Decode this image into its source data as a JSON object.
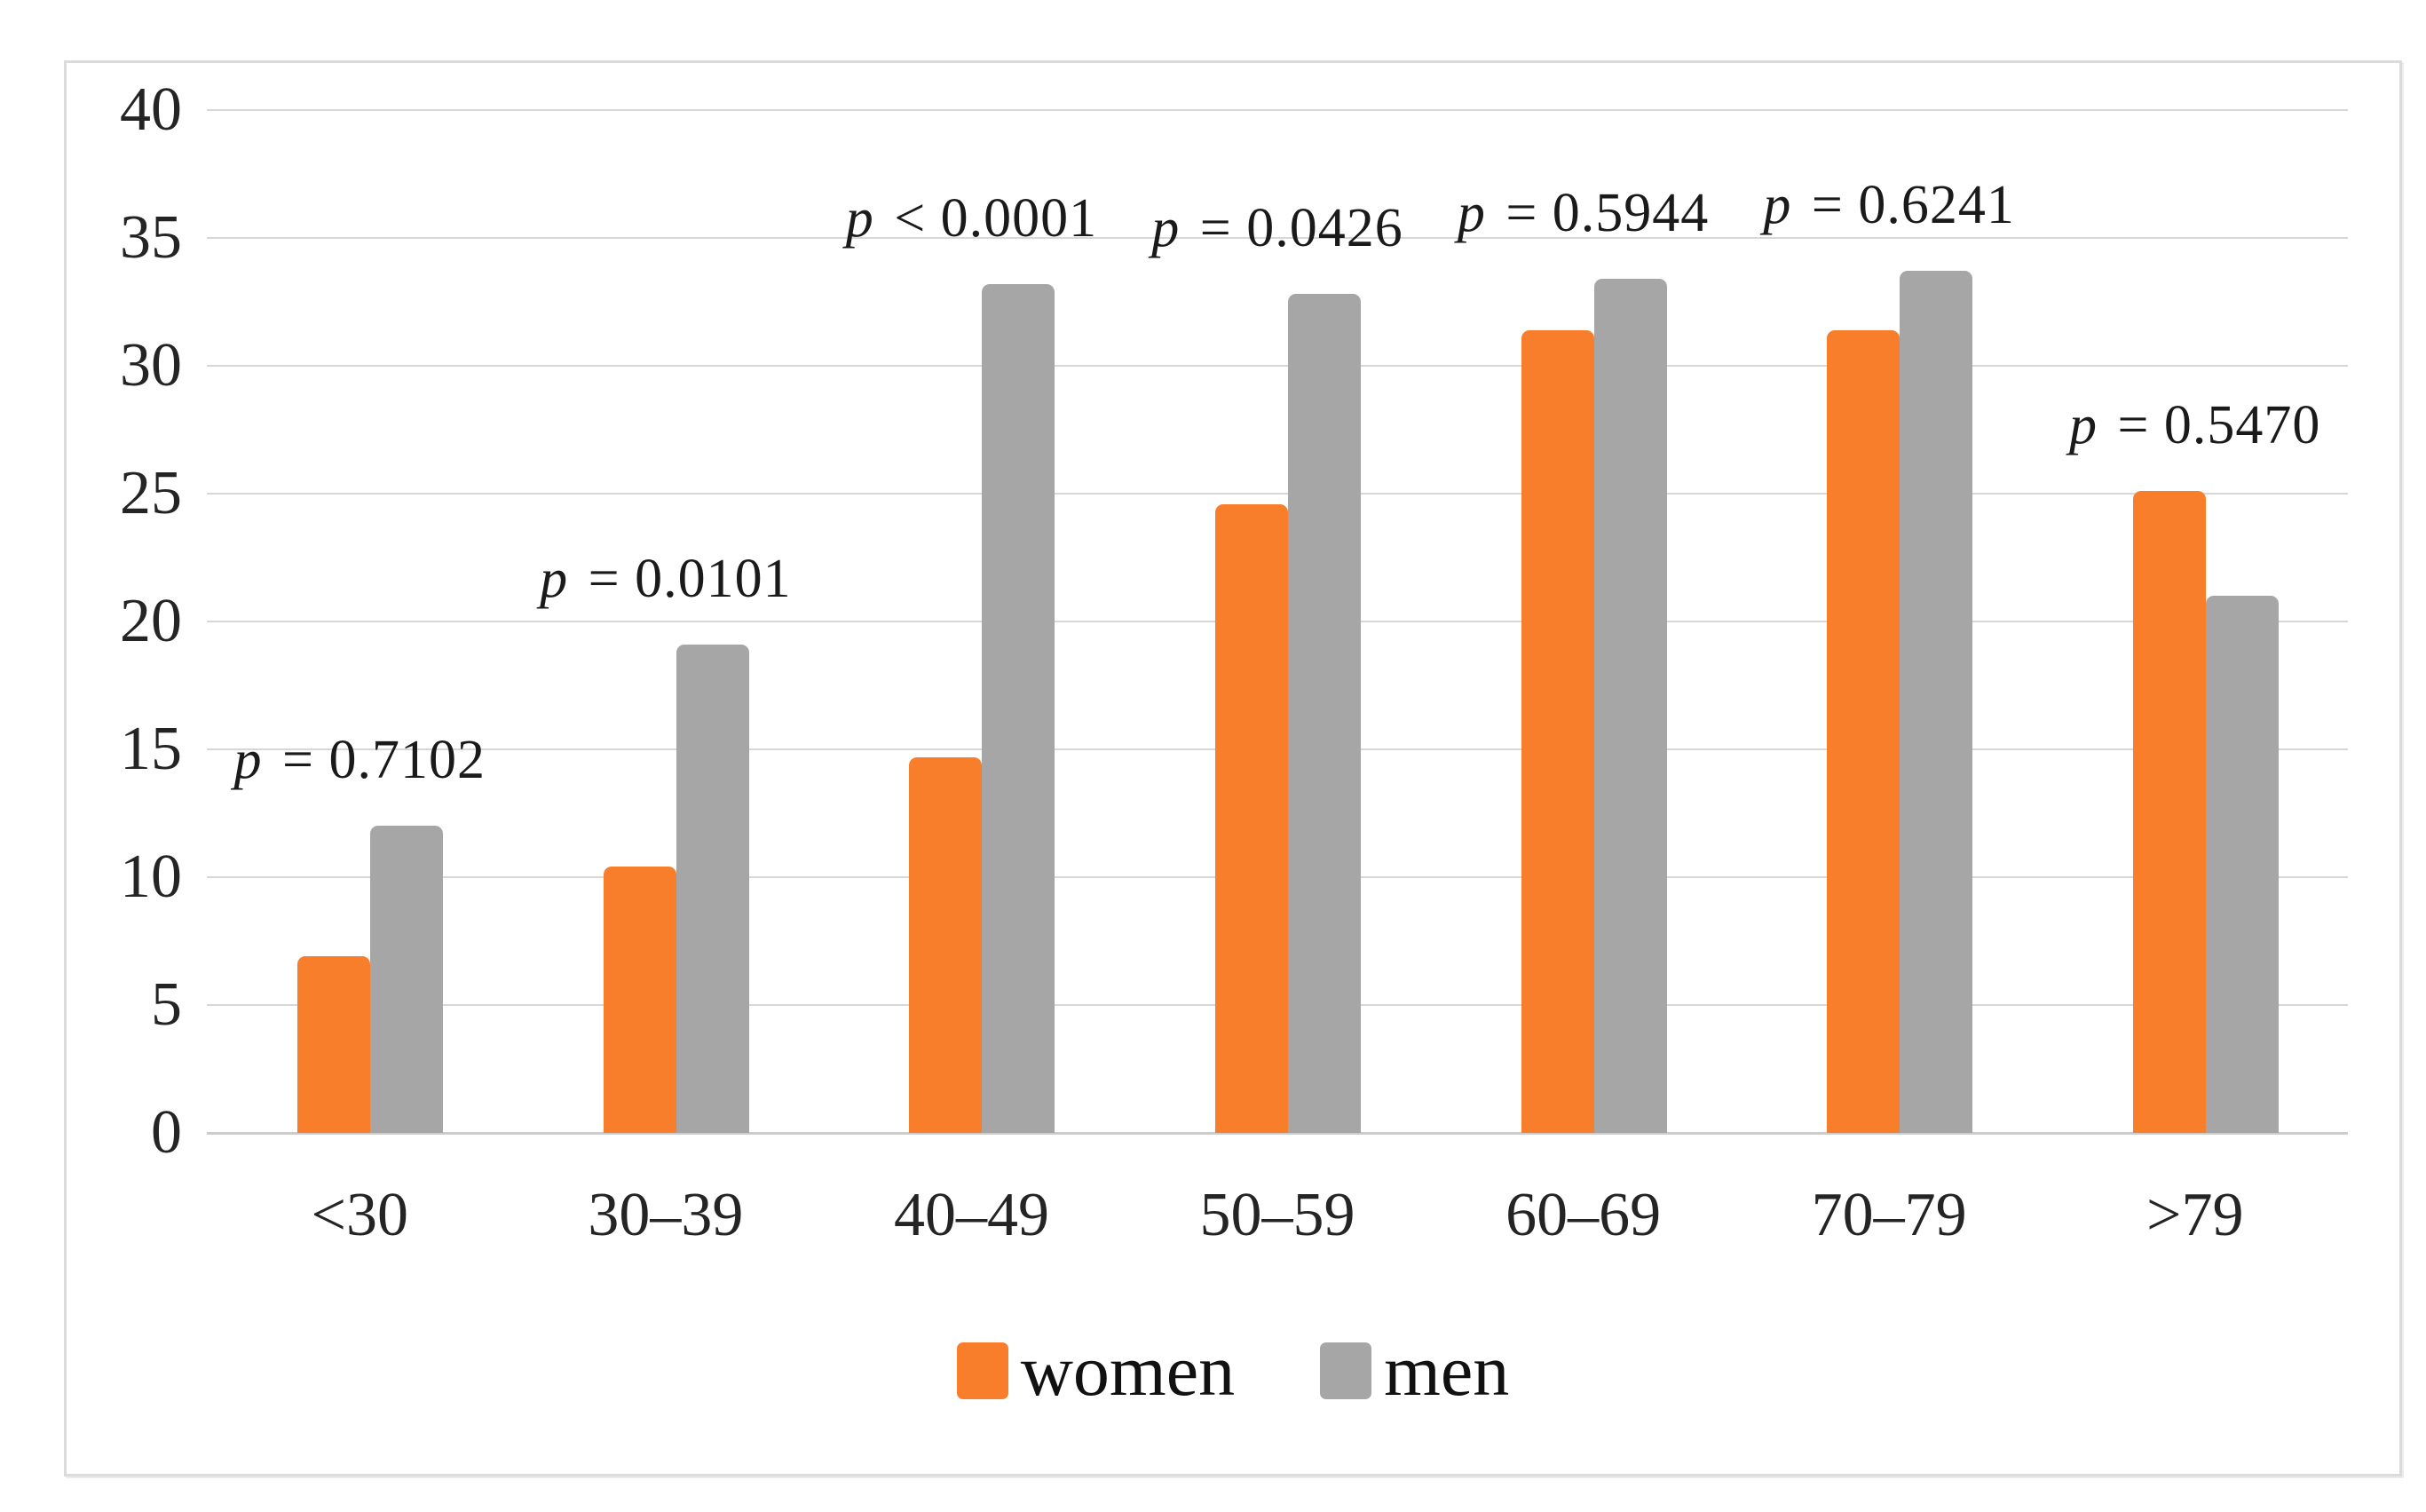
{
  "chart_data": {
    "type": "bar",
    "title": "",
    "categories": [
      "<30",
      "30–39",
      "40–49",
      "50–59",
      "60–69",
      "70–79",
      ">79"
    ],
    "series": [
      {
        "name": "women",
        "color": "#F87E2B",
        "values": [
          6.9,
          10.4,
          14.7,
          24.6,
          31.4,
          31.4,
          25.1
        ]
      },
      {
        "name": "men",
        "color": "#A6A6A6",
        "values": [
          12.0,
          19.1,
          33.2,
          32.8,
          33.4,
          33.7,
          21.0
        ]
      }
    ],
    "p_labels": [
      "p = 0.7102",
      "p = 0.0101",
      "p < 0.0001",
      "p = 0.0426",
      "p = 0.5944",
      "p = 0.6241",
      "p = 0.5470"
    ],
    "yticks": [
      0,
      5,
      10,
      15,
      20,
      25,
      30,
      35,
      40
    ],
    "ylim": [
      0,
      40
    ],
    "xlabel": "",
    "ylabel": "",
    "grid": true,
    "legend_position": "bottom",
    "gridline_color": "#D7D7D7",
    "frame_border_color": "#DBDBDB"
  }
}
